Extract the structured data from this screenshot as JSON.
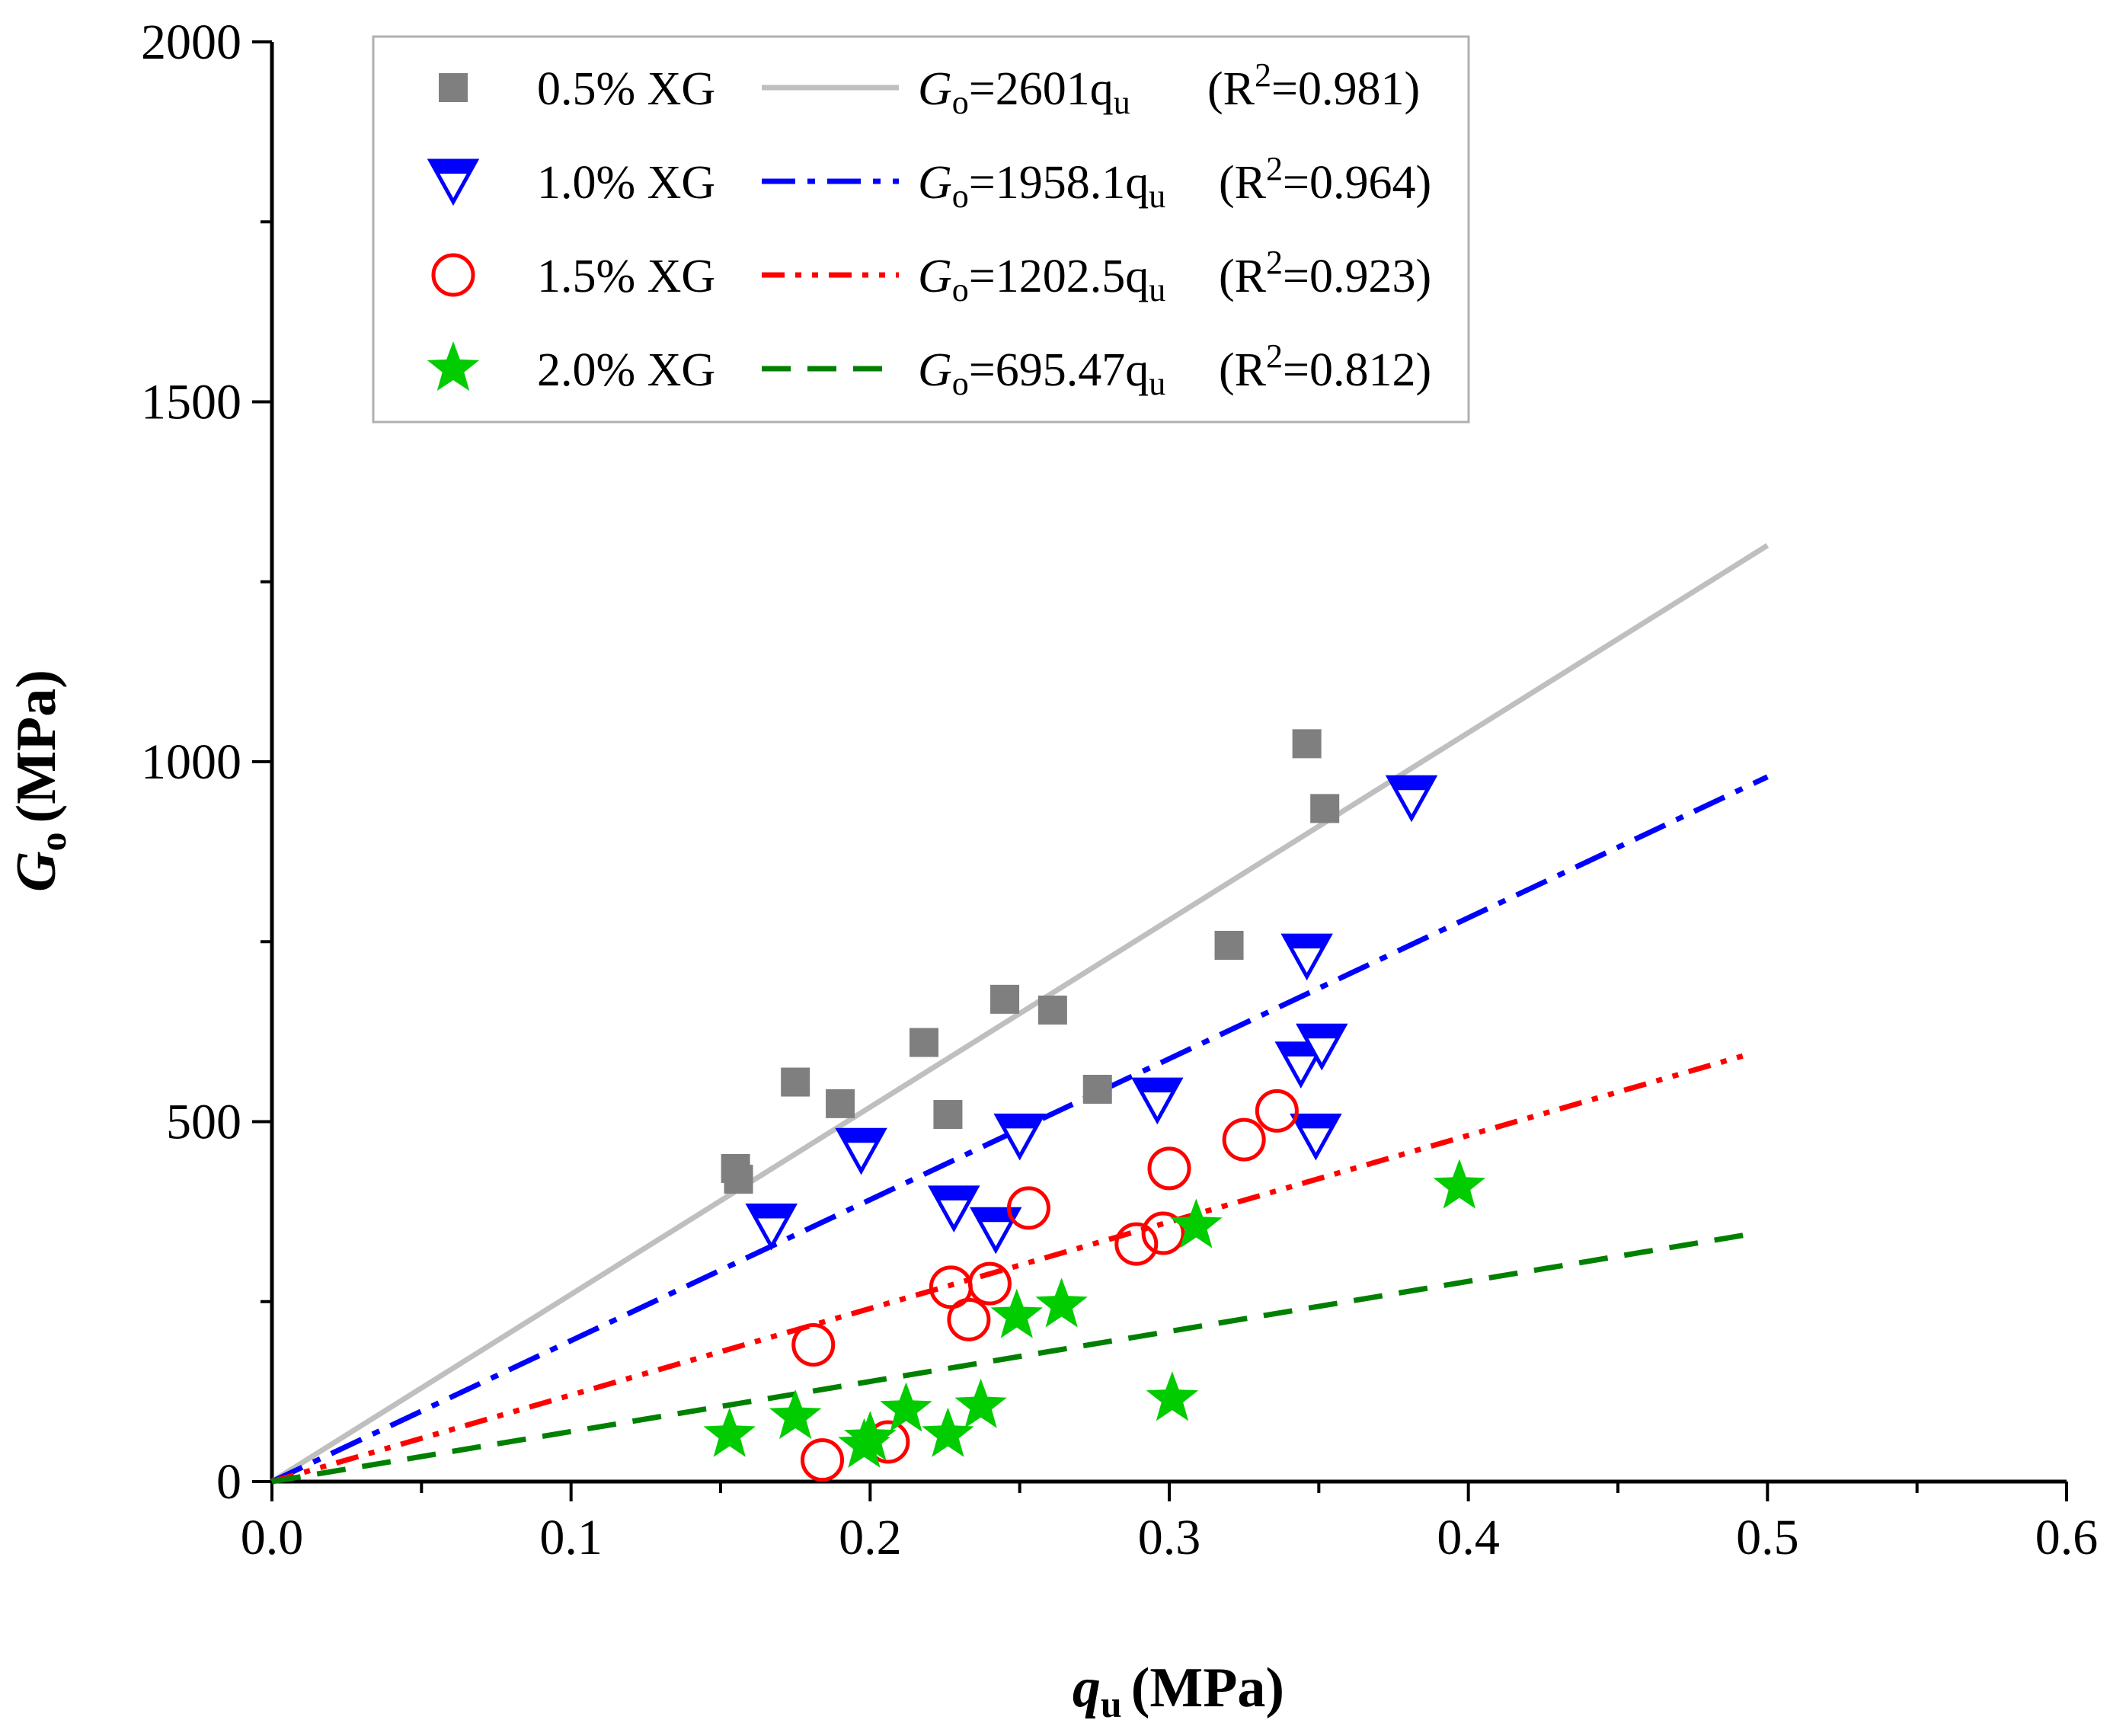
{
  "chart_data": {
    "type": "scatter",
    "title": "",
    "xlabel": {
      "main": "q",
      "sub": "u",
      "unit": "(MPa)"
    },
    "ylabel": {
      "main": "G",
      "sub": "o",
      "unit": "(MPa)"
    },
    "xlim": [
      0,
      0.6
    ],
    "ylim": [
      0,
      2000
    ],
    "xticks": [
      0.0,
      0.1,
      0.2,
      0.3,
      0.4,
      0.5,
      0.6
    ],
    "xtick_labels": [
      "0.0",
      "0.1",
      "0.2",
      "0.3",
      "0.4",
      "0.5",
      "0.6"
    ],
    "yticks": [
      0,
      500,
      1000,
      1500,
      2000
    ],
    "ytick_labels": [
      "0",
      "500",
      "1000",
      "1500",
      "2000"
    ],
    "grid": false,
    "legend_position": "top-left",
    "series": [
      {
        "name": "0.5% XG",
        "marker": "square",
        "color": "#7f7f7f",
        "fit": {
          "slope": 2601,
          "eq_main": "=2601q",
          "r2_text": "(R",
          "r2_value": "=0.981)",
          "color": "#bfbfbf",
          "style": "solid",
          "x_end": 0.5
        },
        "points": [
          [
            0.155,
            435
          ],
          [
            0.156,
            420
          ],
          [
            0.175,
            555
          ],
          [
            0.19,
            525
          ],
          [
            0.218,
            610
          ],
          [
            0.226,
            510
          ],
          [
            0.245,
            670
          ],
          [
            0.261,
            655
          ],
          [
            0.276,
            545
          ],
          [
            0.32,
            745
          ],
          [
            0.346,
            1025
          ],
          [
            0.352,
            935
          ]
        ]
      },
      {
        "name": "1.0% XG",
        "marker": "triangle-down",
        "color": "#0000ff",
        "fit": {
          "slope": 1958.1,
          "eq_main": "=1958.1q",
          "r2_text": "(R",
          "r2_value": "=0.964)",
          "color": "#0000ff",
          "style": "dashdot",
          "x_end": 0.5
        },
        "points": [
          [
            0.167,
            355
          ],
          [
            0.197,
            460
          ],
          [
            0.228,
            380
          ],
          [
            0.242,
            350
          ],
          [
            0.25,
            480
          ],
          [
            0.296,
            530
          ],
          [
            0.344,
            580
          ],
          [
            0.346,
            730
          ],
          [
            0.351,
            605
          ],
          [
            0.349,
            480
          ],
          [
            0.381,
            950
          ]
        ]
      },
      {
        "name": "1.5% XG",
        "marker": "circle-open",
        "color": "#ff0000",
        "fit": {
          "slope": 1202.5,
          "eq_main": "=1202.5q",
          "r2_text": "(R",
          "r2_value": "=0.923)",
          "color": "#ff0000",
          "style": "dashdotdot",
          "x_end": 0.495
        },
        "points": [
          [
            0.181,
            190
          ],
          [
            0.184,
            30
          ],
          [
            0.206,
            55
          ],
          [
            0.227,
            270
          ],
          [
            0.233,
            225
          ],
          [
            0.24,
            275
          ],
          [
            0.253,
            380
          ],
          [
            0.289,
            330
          ],
          [
            0.298,
            345
          ],
          [
            0.3,
            435
          ],
          [
            0.325,
            475
          ],
          [
            0.336,
            515
          ]
        ]
      },
      {
        "name": "2.0% XG",
        "marker": "star",
        "color": "#00cc00",
        "fit": {
          "slope": 695.47,
          "eq_main": "=695.47q",
          "r2_text": "(R",
          "r2_value": "=0.812)",
          "color": "#008000",
          "style": "dashed",
          "x_end": 0.495
        },
        "points": [
          [
            0.153,
            65
          ],
          [
            0.175,
            90
          ],
          [
            0.198,
            50
          ],
          [
            0.2,
            60
          ],
          [
            0.212,
            100
          ],
          [
            0.226,
            65
          ],
          [
            0.237,
            105
          ],
          [
            0.249,
            230
          ],
          [
            0.264,
            245
          ],
          [
            0.301,
            115
          ],
          [
            0.309,
            355
          ],
          [
            0.397,
            410
          ]
        ]
      }
    ]
  }
}
